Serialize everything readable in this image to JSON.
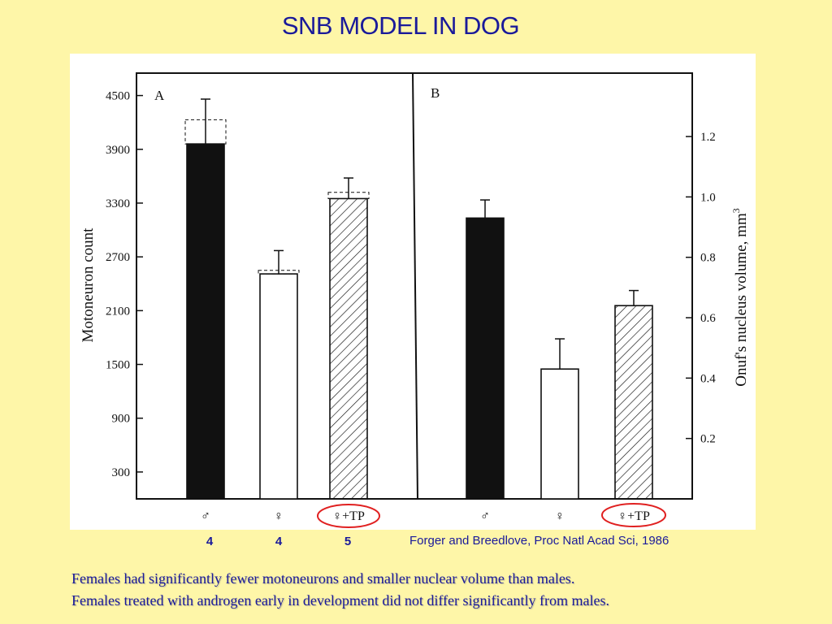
{
  "slide": {
    "title": "SNB MODEL IN DOG",
    "sample_sizes": [
      "4",
      "4",
      "5"
    ],
    "citation": "Forger and Breedlove, Proc Natl Acad Sci, 1986",
    "caption_lines": [
      "Females had significantly fewer motoneurons and smaller nuclear volume than males.",
      "Females treated with androgen early in development did not differ significantly from males."
    ]
  },
  "colors": {
    "background": "#FEF6A8",
    "text_blue": "#1A1A9A",
    "highlight_circle": "#E02020"
  },
  "chart_data": [
    {
      "type": "bar",
      "panel": "A",
      "ylabel": "Motoneuron count",
      "yticks": [
        300,
        900,
        1500,
        2100,
        2700,
        3300,
        3900,
        4500
      ],
      "ylim": [
        0,
        4750
      ],
      "categories": [
        "♂",
        "♀",
        "♀+TP"
      ],
      "fills": [
        "solid",
        "open",
        "hatched"
      ],
      "values": [
        3960,
        2510,
        3350
      ],
      "error": [
        500,
        260,
        230
      ],
      "dashed_values": [
        4230,
        2550,
        3420
      ]
    },
    {
      "type": "bar",
      "panel": "B",
      "ylabel": "Onuf's nucleus volume, mm",
      "ylabel_superscript": "3",
      "yticks": [
        0.2,
        0.4,
        0.6,
        0.8,
        1.0,
        1.2
      ],
      "ytick_labels": [
        "0.2",
        "0.4",
        "0.6",
        "0.8",
        "1.0",
        "1.2"
      ],
      "ylim": [
        0,
        1.41
      ],
      "categories": [
        "♂",
        "♀",
        "♀+TP"
      ],
      "fills": [
        "solid",
        "open",
        "hatched"
      ],
      "values": [
        0.93,
        0.43,
        0.64
      ],
      "error": [
        0.06,
        0.1,
        0.05
      ],
      "highlighted_category": "♀+TP"
    }
  ]
}
